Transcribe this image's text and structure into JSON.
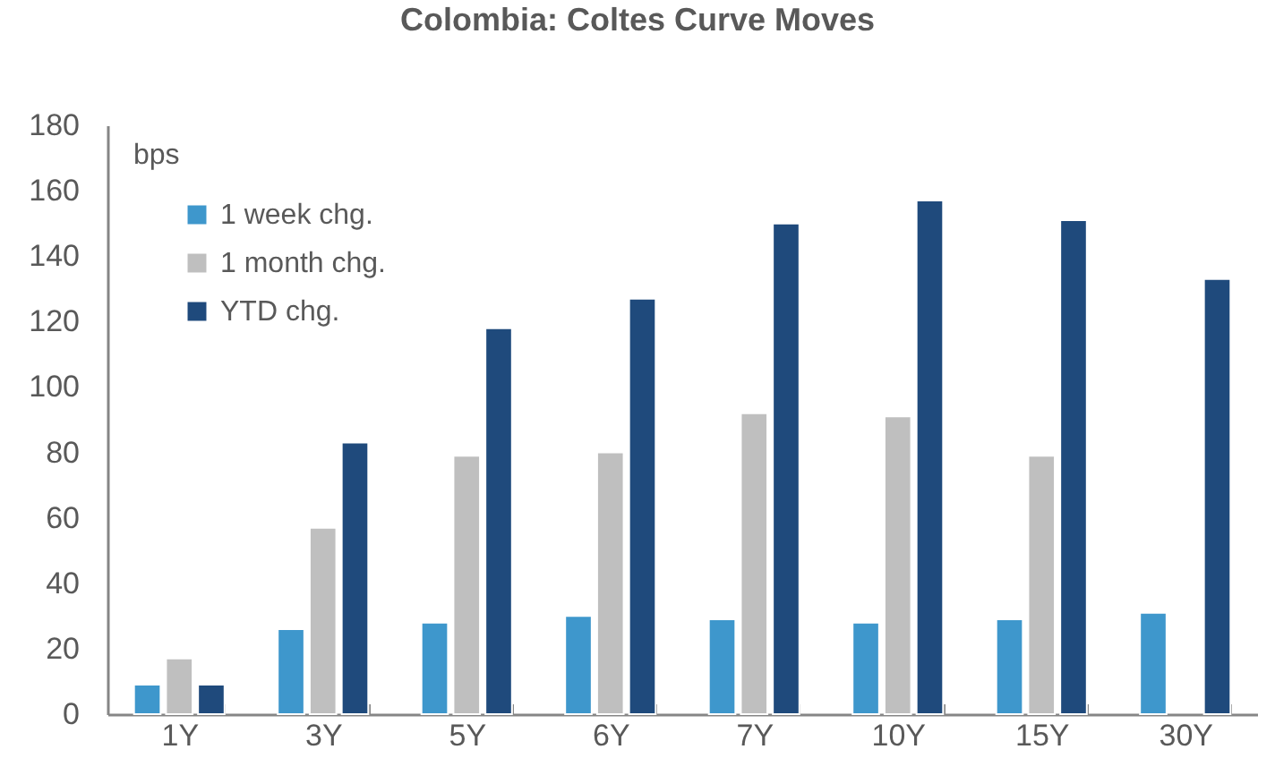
{
  "chart_data": {
    "type": "bar",
    "title": "Colombia: Coltes Curve Moves",
    "ylabel": "bps",
    "categories": [
      "1Y",
      "3Y",
      "5Y",
      "6Y",
      "7Y",
      "10Y",
      "15Y",
      "30Y"
    ],
    "series": [
      {
        "name": "1 week chg.",
        "color": "#3e97cc",
        "values": [
          9,
          26,
          28,
          30,
          29,
          28,
          29,
          31
        ]
      },
      {
        "name": "1 month chg.",
        "color": "#bfbfbf",
        "values": [
          17,
          57,
          79,
          80,
          92,
          91,
          79,
          null
        ]
      },
      {
        "name": "YTD chg.",
        "color": "#1f4a7c",
        "values": [
          9,
          83,
          118,
          127,
          150,
          157,
          151,
          133
        ]
      }
    ],
    "ylim": [
      0,
      180
    ],
    "yticks": [
      0,
      20,
      40,
      60,
      80,
      100,
      120,
      140,
      160,
      180
    ],
    "legend": "top left"
  }
}
